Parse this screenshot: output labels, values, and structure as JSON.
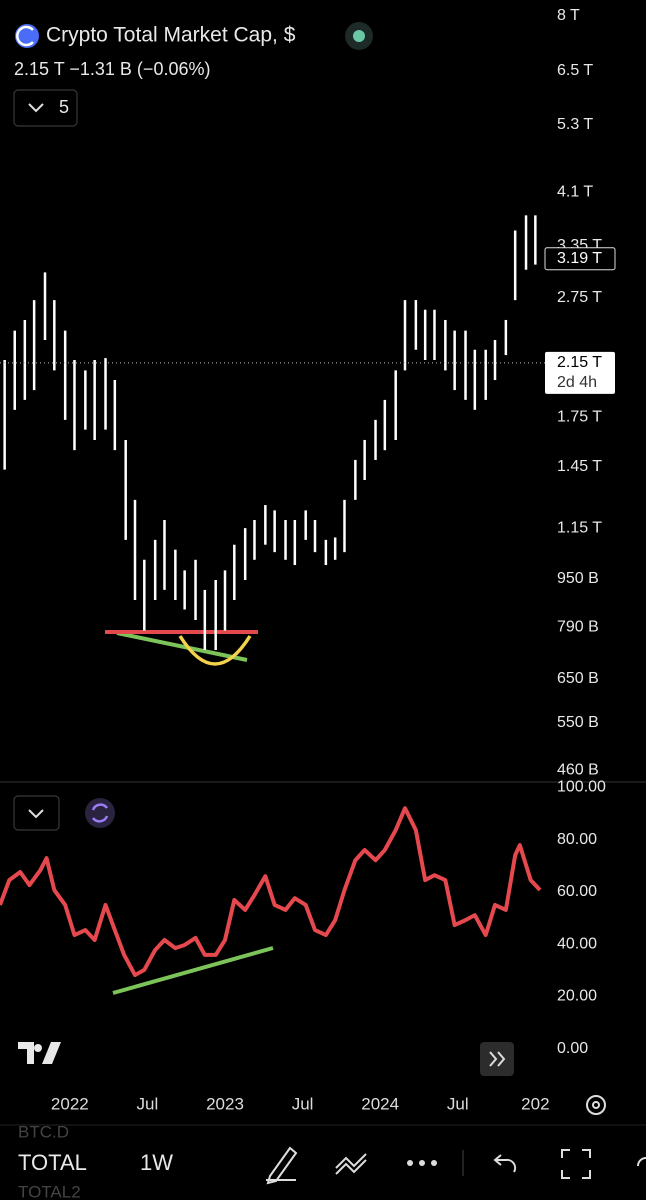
{
  "header": {
    "title": "Crypto Total Market Cap, $",
    "quote": "2.15 T  −1.31 B (−0.06%)",
    "indicators": "5"
  },
  "toolbar": {
    "symbols": [
      "BTC.D",
      "TOTAL",
      "TOTAL2"
    ],
    "interval": "1W"
  },
  "chart_data": [
    {
      "type": "range-bar",
      "color": "#ffffff",
      "log_scale": true,
      "xlim": [
        2021.55,
        2025.03
      ],
      "ylim": [
        443,
        8500
      ],
      "yticks": [
        {
          "value": 8000,
          "label": "8 T"
        },
        {
          "value": 6500,
          "label": "6.5 T"
        },
        {
          "value": 5300,
          "label": "5.3 T"
        },
        {
          "value": 4100,
          "label": "4.1 T"
        },
        {
          "value": 3350,
          "label": "3.35 T"
        },
        {
          "value": 2750,
          "label": "2.75 T"
        },
        {
          "value": 1750,
          "label": "1.75 T"
        },
        {
          "value": 1450,
          "label": "1.45 T"
        },
        {
          "value": 1150,
          "label": "1.15 T"
        },
        {
          "value": 950,
          "label": "950 B"
        },
        {
          "value": 790,
          "label": "790 B"
        },
        {
          "value": 650,
          "label": "650 B"
        },
        {
          "value": 550,
          "label": "550 B"
        },
        {
          "value": 460,
          "label": "460 B"
        }
      ],
      "x": [
        2021.58,
        2021.645,
        2021.71,
        2021.77,
        2021.84,
        2021.9,
        2021.97,
        2022.03,
        2022.1,
        2022.16,
        2022.23,
        2022.29,
        2022.36,
        2022.42,
        2022.48,
        2022.55,
        2022.61,
        2022.68,
        2022.74,
        2022.81,
        2022.87,
        2022.94,
        2023.0,
        2023.06,
        2023.13,
        2023.19,
        2023.26,
        2023.32,
        2023.39,
        2023.45,
        2023.52,
        2023.58,
        2023.65,
        2023.71,
        2023.77,
        2023.84,
        2023.9,
        2023.97,
        2024.03,
        2024.1,
        2024.16,
        2024.23,
        2024.29,
        2024.35,
        2024.42,
        2024.48,
        2024.55,
        2024.61,
        2024.68,
        2024.74,
        2024.81,
        2024.87,
        2024.94,
        2025.0
      ],
      "high": [
        2174,
        2430,
        2530,
        2728,
        3030,
        2728,
        2430,
        2174,
        2090,
        2174,
        2190,
        2015,
        1606,
        1280,
        1020,
        1100,
        1186,
        1060,
        980,
        1020,
        910,
        945,
        980,
        1080,
        1150,
        1186,
        1255,
        1230,
        1186,
        1186,
        1230,
        1186,
        1100,
        1110,
        1280,
        1489,
        1606,
        1733,
        1869,
        2090,
        2728,
        2728,
        2630,
        2630,
        2530,
        2430,
        2430,
        2260,
        2260,
        2345,
        2530,
        3550,
        3760,
        3760
      ],
      "low": [
        1435,
        1800,
        1869,
        1940,
        2345,
        2090,
        1733,
        1545,
        1670,
        1606,
        1670,
        1545,
        1100,
        876,
        780,
        876,
        910,
        876,
        845,
        812,
        725,
        725,
        780,
        876,
        945,
        1020,
        1080,
        1050,
        1020,
        1000,
        1100,
        1050,
        1000,
        1020,
        1050,
        1280,
        1380,
        1489,
        1545,
        1606,
        2090,
        2260,
        2174,
        2174,
        2090,
        1940,
        1869,
        1800,
        1869,
        2015,
        2215,
        2728,
        3060,
        3120
      ],
      "price_labels": [
        {
          "value": 3190,
          "label": "3.19 T",
          "style": "outline"
        },
        {
          "value": 2150,
          "label": "2.15 T",
          "countdown": "2d 4h",
          "style": "filled"
        }
      ]
    },
    {
      "type": "line",
      "color": "#e5484d",
      "xlim": [
        2021.55,
        2025.03
      ],
      "ylim": [
        -10,
        102
      ],
      "yticks": [
        {
          "value": 100,
          "label": "100.00"
        },
        {
          "value": 80,
          "label": "80.00"
        },
        {
          "value": 60,
          "label": "60.00"
        },
        {
          "value": 40,
          "label": "40.00"
        },
        {
          "value": 20,
          "label": "20.00"
        },
        {
          "value": 0,
          "label": "0.00"
        }
      ],
      "xticks": [
        2022,
        {
          "value": 2022.5,
          "label": "Jul"
        },
        2023,
        {
          "value": 2023.5,
          "label": "Jul"
        },
        2024,
        {
          "value": 2024.5,
          "label": "Jul"
        },
        {
          "value": 2025,
          "label": "202"
        }
      ],
      "x": [
        2021.55,
        2021.61,
        2021.68,
        2021.74,
        2021.81,
        2021.85,
        2021.9,
        2021.97,
        2022.03,
        2022.1,
        2022.16,
        2022.23,
        2022.29,
        2022.35,
        2022.42,
        2022.48,
        2022.55,
        2022.61,
        2022.68,
        2022.74,
        2022.81,
        2022.87,
        2022.94,
        2023.0,
        2023.06,
        2023.13,
        2023.19,
        2023.26,
        2023.32,
        2023.39,
        2023.45,
        2023.52,
        2023.58,
        2023.65,
        2023.71,
        2023.77,
        2023.84,
        2023.9,
        2023.97,
        2024.03,
        2024.1,
        2024.16,
        2024.23,
        2024.29,
        2024.35,
        2024.42,
        2024.48,
        2024.55,
        2024.61,
        2024.68,
        2024.74,
        2024.81,
        2024.87,
        2024.9,
        2024.97,
        2025.03
      ],
      "values": [
        55.0,
        64.5,
        67.6,
        62.6,
        68.3,
        72.9,
        60.7,
        55.0,
        43.5,
        45.4,
        41.6,
        55.0,
        45.4,
        35.9,
        28.2,
        30.2,
        37.8,
        41.6,
        38.5,
        39.7,
        42.4,
        35.9,
        35.9,
        41.6,
        56.9,
        53.1,
        58.8,
        66.0,
        55.0,
        53.1,
        57.6,
        55.0,
        45.4,
        43.5,
        49.2,
        60.7,
        72.1,
        76.0,
        72.1,
        76.0,
        83.6,
        92.0,
        83.6,
        64.5,
        66.4,
        64.5,
        47.3,
        49.2,
        51.1,
        43.5,
        55.0,
        53.1,
        74.0,
        77.9,
        64.5,
        60.7
      ]
    }
  ]
}
